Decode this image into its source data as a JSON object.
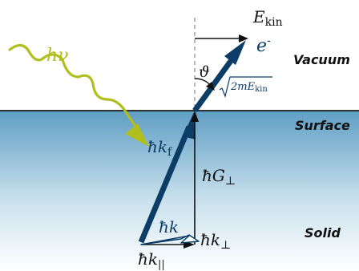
{
  "regions": {
    "vacuum": "Vacuum",
    "surface": "Surface",
    "solid": "Solid"
  },
  "labels": {
    "photon_h": "h",
    "photon_nu": "ν",
    "ekin_E": "E",
    "ekin_sub": "kin",
    "electron_e": "e",
    "electron_sup": "-",
    "angle": "ϑ",
    "sqrt_2mE": "2mE",
    "sqrt_sub": "kin",
    "hbar": "ħ",
    "k": "k",
    "kf_sub": "f",
    "G": "G",
    "perp": "⊥",
    "par": "||"
  },
  "colors": {
    "navy": "#0b3d66",
    "photon": "#b0be1e",
    "surface_top": "#5f9ec4",
    "surface_bottom": "#ffffff"
  }
}
